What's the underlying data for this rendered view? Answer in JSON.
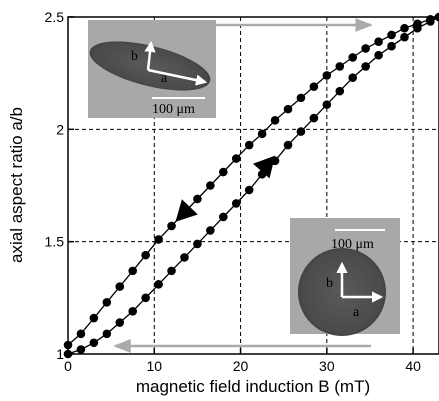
{
  "chart_data": {
    "type": "line",
    "title": "",
    "xlabel": "magnetic field induction B (mT)",
    "ylabel": "axial aspect ratio a/b",
    "xlim": [
      0,
      43
    ],
    "ylim": [
      1.0,
      2.5
    ],
    "xticks": [
      0,
      10,
      20,
      30,
      40
    ],
    "xtick_labels": [
      "0",
      "10",
      "20",
      "30",
      "40"
    ],
    "yticks": [
      1.0,
      1.5,
      2.0,
      2.5
    ],
    "ytick_labels": [
      "1",
      "1.5",
      "2",
      "2.5"
    ],
    "grid": "dashed",
    "series": [
      {
        "direction": "decreasing",
        "x": [
          43,
          42,
          40.5,
          39,
          37.5,
          36,
          34.5,
          33,
          31.5,
          30,
          28.5,
          27,
          25.5,
          24,
          22.5,
          21,
          19.5,
          18,
          16.5,
          15,
          13.5,
          12,
          10.5,
          9,
          7.5,
          6,
          4.5,
          3,
          1.5,
          0
        ],
        "y": [
          2.5,
          2.49,
          2.47,
          2.45,
          2.42,
          2.39,
          2.36,
          2.32,
          2.28,
          2.24,
          2.19,
          2.14,
          2.09,
          2.04,
          1.98,
          1.93,
          1.87,
          1.81,
          1.75,
          1.69,
          1.63,
          1.57,
          1.51,
          1.44,
          1.37,
          1.3,
          1.23,
          1.16,
          1.09,
          1.04
        ]
      },
      {
        "direction": "increasing",
        "x": [
          0,
          1.5,
          3,
          4.5,
          6,
          7.5,
          9,
          10.5,
          12,
          13.5,
          15,
          16.5,
          18,
          19.5,
          21,
          22.5,
          24,
          25.5,
          27,
          28.5,
          30,
          31.5,
          33,
          34.5,
          36,
          37.5,
          39,
          40.5,
          42,
          43
        ],
        "y": [
          1.0,
          1.02,
          1.05,
          1.09,
          1.14,
          1.19,
          1.25,
          1.31,
          1.37,
          1.43,
          1.49,
          1.55,
          1.61,
          1.67,
          1.73,
          1.8,
          1.86,
          1.93,
          1.99,
          2.05,
          2.11,
          2.17,
          2.23,
          2.28,
          2.33,
          2.37,
          2.41,
          2.45,
          2.48,
          2.5
        ]
      }
    ],
    "direction_arrows": [
      {
        "series": "decreasing",
        "at_x": 13.5,
        "at_y": 1.63
      },
      {
        "series": "increasing",
        "at_x": 23,
        "at_y": 1.84
      }
    ],
    "sweep_arrows": [
      {
        "direction": "increasing",
        "y": 2.5,
        "x_from": 0,
        "x_to": 43,
        "color": "#aaaaaa"
      },
      {
        "direction": "decreasing",
        "y": 1.0,
        "x_from": 43,
        "x_to": 0,
        "color": "#aaaaaa"
      }
    ]
  },
  "insets": {
    "top_left": {
      "scale_label": "100 μm",
      "arrow_label_a": "a",
      "arrow_label_b": "b"
    },
    "bottom_right": {
      "scale_label": "100 μm",
      "arrow_label_a": "a",
      "arrow_label_b": "b"
    }
  },
  "colors": {
    "line": "#000000",
    "marker": "#000000",
    "grid": "#000000",
    "sweep_arrow": "#aaaaaa",
    "inset_background": "#a8a8a8",
    "droplet": "#555555"
  }
}
